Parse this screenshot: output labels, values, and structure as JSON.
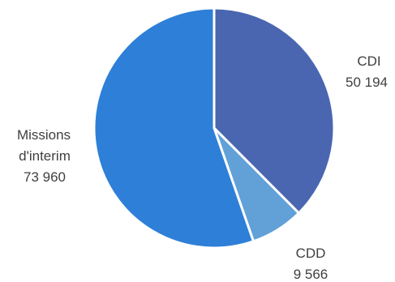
{
  "chart_data": {
    "type": "pie",
    "slices": [
      {
        "label": "CDI",
        "value": 50194,
        "value_label": "50 194",
        "color": "#4a66b0"
      },
      {
        "label": "CDD",
        "value": 9566,
        "value_label": "9 566",
        "color": "#62a0d8"
      },
      {
        "label": "Missions d'interim",
        "label_lines": [
          "Missions",
          "d'interim"
        ],
        "value": 73960,
        "value_label": "73 960",
        "color": "#2e7fd8"
      }
    ],
    "start_angle": "12 o'clock",
    "direction": "clockwise",
    "separator_color": "#ffffff",
    "legend": "none"
  }
}
